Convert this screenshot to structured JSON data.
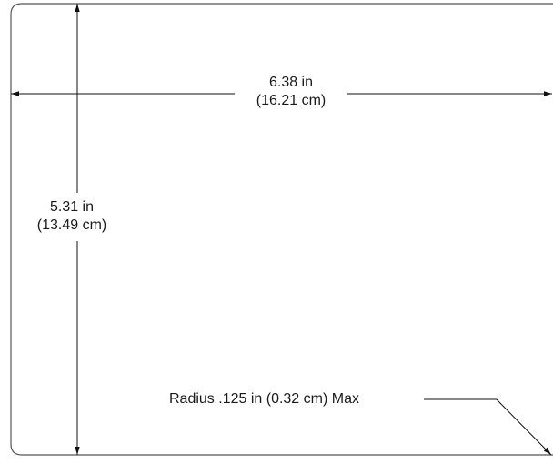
{
  "dimensions": {
    "width": {
      "imperial": "6.38 in",
      "metric": "(16.21 cm)"
    },
    "height": {
      "imperial": "5.31 in",
      "metric": "(13.49 cm)"
    },
    "corner_radius": {
      "text": "Radius .125 in (0.32 cm) Max"
    }
  },
  "colors": {
    "outline": "#555555",
    "dimension_line": "#111111",
    "text": "#1a1a1a"
  }
}
